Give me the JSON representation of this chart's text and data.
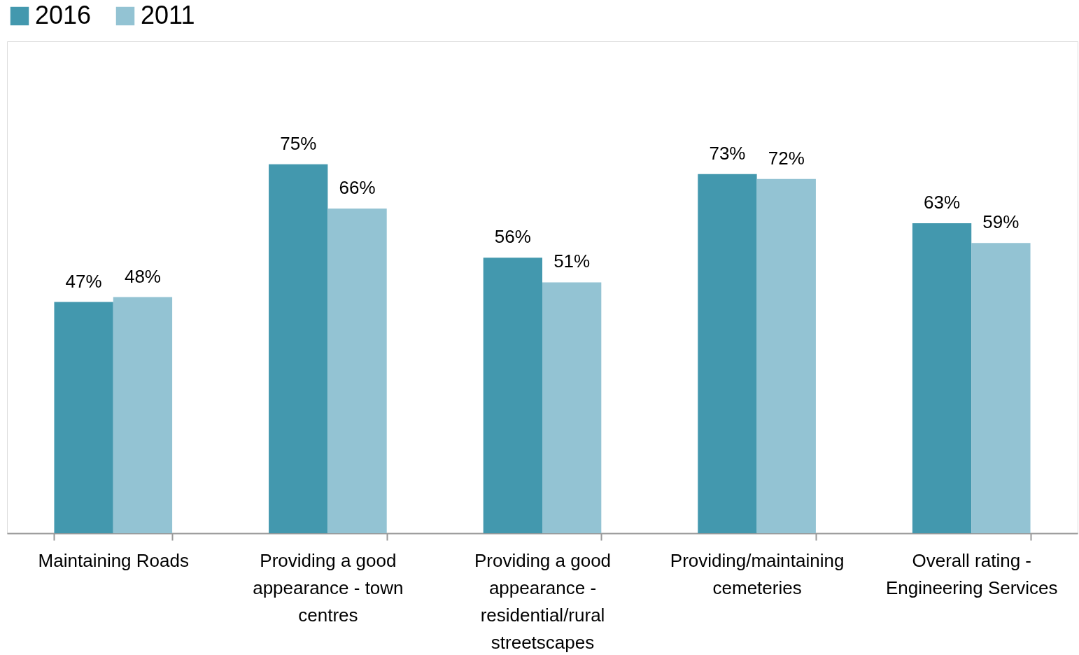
{
  "chart_data": {
    "type": "bar",
    "categories": [
      "Maintaining Roads",
      "Providing a good appearance - town centres",
      "Providing a good appearance - residential/rural streetscapes",
      "Providing/maintaining cemeteries",
      "Overall rating - Engineering Services"
    ],
    "series": [
      {
        "name": "2016",
        "color": "#4398ae",
        "values": [
          47,
          75,
          56,
          73,
          63
        ],
        "value_labels": [
          "47%",
          "75%",
          "56%",
          "73%",
          "63%"
        ]
      },
      {
        "name": "2011",
        "color": "#93c3d3",
        "values": [
          48,
          66,
          51,
          72,
          59
        ],
        "value_labels": [
          "48%",
          "66%",
          "51%",
          "72%",
          "59%"
        ]
      }
    ],
    "ylim": [
      0,
      100
    ],
    "tick_labels": "x",
    "grid": false,
    "legend": "top"
  }
}
